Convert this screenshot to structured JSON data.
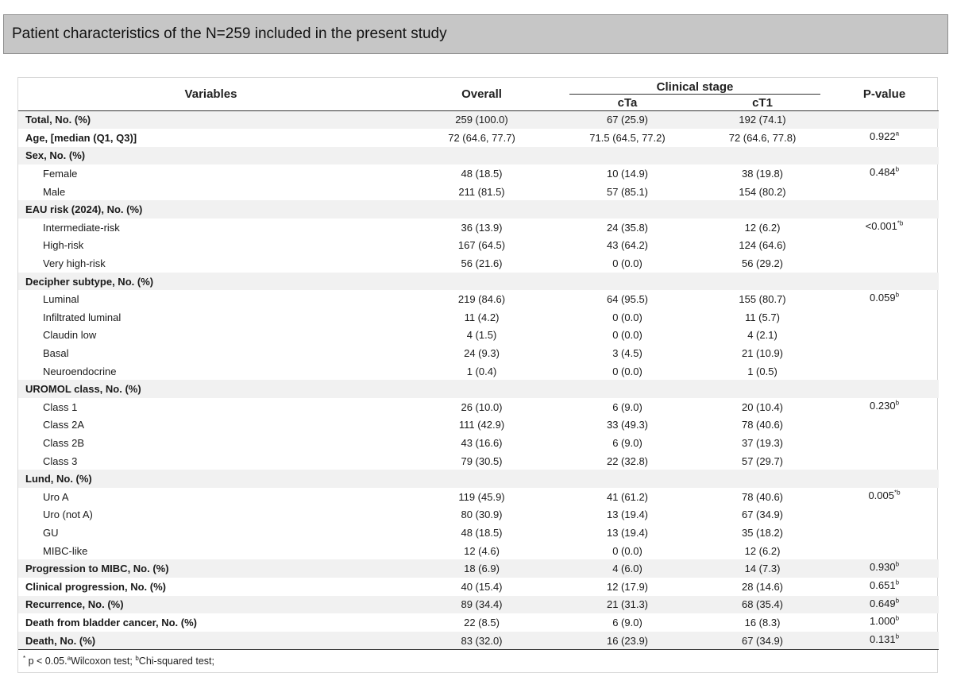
{
  "title": "Patient characteristics of the N=259 included in the present study",
  "headers": {
    "variables": "Variables",
    "overall": "Overall",
    "clinical_stage": "Clinical stage",
    "cta": "cTa",
    "ct1": "cT1",
    "pvalue": "P-value"
  },
  "rows": [
    {
      "label": "Total, No. (%)",
      "group": true,
      "indent": false,
      "overall": "259 (100.0)",
      "cta": "67 (25.9)",
      "ct1": "192 (74.1)",
      "p": "",
      "sup": ""
    },
    {
      "label": "Age,  [median (Q1, Q3)]",
      "group": false,
      "indent": false,
      "bold": true,
      "overall": "72 (64.6, 77.7)",
      "cta": "71.5 (64.5, 77.2)",
      "ct1": "72 (64.6, 77.8)",
      "p": "0.922",
      "sup": "a"
    },
    {
      "label": "Sex, No. (%)",
      "group": true,
      "indent": false,
      "overall": "",
      "cta": "",
      "ct1": "",
      "p": "",
      "sup": ""
    },
    {
      "label": "Female",
      "group": false,
      "indent": true,
      "overall": "48 (18.5)",
      "cta": "10 (14.9)",
      "ct1": "38 (19.8)",
      "p": "0.484",
      "sup": "b"
    },
    {
      "label": "Male",
      "group": false,
      "indent": true,
      "overall": "211 (81.5)",
      "cta": "57 (85.1)",
      "ct1": "154 (80.2)",
      "p": "",
      "sup": ""
    },
    {
      "label": "EAU risk (2024), No. (%)",
      "group": true,
      "indent": false,
      "overall": "",
      "cta": "",
      "ct1": "",
      "p": "",
      "sup": ""
    },
    {
      "label": "Intermediate-risk",
      "group": false,
      "indent": true,
      "overall": "36 (13.9)",
      "cta": "24 (35.8)",
      "ct1": "12 (6.2)",
      "p": "<0.001",
      "sup": "*b"
    },
    {
      "label": "High-risk",
      "group": false,
      "indent": true,
      "overall": "167 (64.5)",
      "cta": "43 (64.2)",
      "ct1": "124 (64.6)",
      "p": "",
      "sup": ""
    },
    {
      "label": "Very high-risk",
      "group": false,
      "indent": true,
      "overall": "56 (21.6)",
      "cta": "0 (0.0)",
      "ct1": "56 (29.2)",
      "p": "",
      "sup": ""
    },
    {
      "label": "Decipher subtype, No. (%)",
      "group": true,
      "indent": false,
      "overall": "",
      "cta": "",
      "ct1": "",
      "p": "",
      "sup": ""
    },
    {
      "label": "Luminal",
      "group": false,
      "indent": true,
      "overall": "219 (84.6)",
      "cta": "64 (95.5)",
      "ct1": "155 (80.7)",
      "p": "0.059",
      "sup": "b"
    },
    {
      "label": "Infiltrated luminal",
      "group": false,
      "indent": true,
      "overall": "11 (4.2)",
      "cta": "0 (0.0)",
      "ct1": "11 (5.7)",
      "p": "",
      "sup": ""
    },
    {
      "label": "Claudin low",
      "group": false,
      "indent": true,
      "overall": "4 (1.5)",
      "cta": "0 (0.0)",
      "ct1": "4 (2.1)",
      "p": "",
      "sup": ""
    },
    {
      "label": "Basal",
      "group": false,
      "indent": true,
      "overall": "24 (9.3)",
      "cta": "3 (4.5)",
      "ct1": "21 (10.9)",
      "p": "",
      "sup": ""
    },
    {
      "label": "Neuroendocrine",
      "group": false,
      "indent": true,
      "overall": "1 (0.4)",
      "cta": "0 (0.0)",
      "ct1": "1 (0.5)",
      "p": "",
      "sup": ""
    },
    {
      "label": "UROMOL class, No. (%)",
      "group": true,
      "indent": false,
      "overall": "",
      "cta": "",
      "ct1": "",
      "p": "",
      "sup": ""
    },
    {
      "label": "Class 1",
      "group": false,
      "indent": true,
      "overall": "26 (10.0)",
      "cta": "6 (9.0)",
      "ct1": "20 (10.4)",
      "p": "0.230",
      "sup": "b"
    },
    {
      "label": "Class 2A",
      "group": false,
      "indent": true,
      "overall": "111 (42.9)",
      "cta": "33 (49.3)",
      "ct1": "78 (40.6)",
      "p": "",
      "sup": ""
    },
    {
      "label": "Class 2B",
      "group": false,
      "indent": true,
      "overall": "43 (16.6)",
      "cta": "6 (9.0)",
      "ct1": "37 (19.3)",
      "p": "",
      "sup": ""
    },
    {
      "label": "Class 3",
      "group": false,
      "indent": true,
      "overall": "79 (30.5)",
      "cta": "22 (32.8)",
      "ct1": "57 (29.7)",
      "p": "",
      "sup": ""
    },
    {
      "label": "Lund, No. (%)",
      "group": true,
      "indent": false,
      "overall": "",
      "cta": "",
      "ct1": "",
      "p": "",
      "sup": ""
    },
    {
      "label": "Uro A",
      "group": false,
      "indent": true,
      "overall": "119 (45.9)",
      "cta": "41 (61.2)",
      "ct1": "78 (40.6)",
      "p": "0.005",
      "sup": "*b"
    },
    {
      "label": "Uro (not A)",
      "group": false,
      "indent": true,
      "overall": "80 (30.9)",
      "cta": "13 (19.4)",
      "ct1": "67 (34.9)",
      "p": "",
      "sup": ""
    },
    {
      "label": "GU",
      "group": false,
      "indent": true,
      "overall": "48 (18.5)",
      "cta": "13 (19.4)",
      "ct1": "35 (18.2)",
      "p": "",
      "sup": ""
    },
    {
      "label": "MIBC-like",
      "group": false,
      "indent": true,
      "overall": "12 (4.6)",
      "cta": "0 (0.0)",
      "ct1": "12 (6.2)",
      "p": "",
      "sup": ""
    },
    {
      "label": "Progression to MIBC, No. (%)",
      "group": true,
      "indent": false,
      "overall": "18 (6.9)",
      "cta": "4 (6.0)",
      "ct1": "14 (7.3)",
      "p": "0.930",
      "sup": "b"
    },
    {
      "label": "Clinical progression, No. (%)",
      "group": false,
      "indent": false,
      "bold": true,
      "overall": "40 (15.4)",
      "cta": "12 (17.9)",
      "ct1": "28 (14.6)",
      "p": "0.651",
      "sup": "b"
    },
    {
      "label": "Recurrence, No. (%)",
      "group": true,
      "indent": false,
      "overall": "89 (34.4)",
      "cta": "21 (31.3)",
      "ct1": "68 (35.4)",
      "p": "0.649",
      "sup": "b"
    },
    {
      "label": "Death from bladder cancer, No. (%)",
      "group": false,
      "indent": false,
      "bold": true,
      "overall": "22 (8.5)",
      "cta": "6 (9.0)",
      "ct1": "16 (8.3)",
      "p": "1.000",
      "sup": "b"
    },
    {
      "label": "Death, No. (%)",
      "group": true,
      "indent": false,
      "overall": "83 (32.0)",
      "cta": "16 (23.9)",
      "ct1": "67 (34.9)",
      "p": "0.131",
      "sup": "b"
    }
  ],
  "footnote": {
    "star": "*",
    "text1": " p < 0.05.",
    "sup_a": "a",
    "text2": "Wilcoxon test; ",
    "sup_b": "b",
    "text3": "Chi-squared test;"
  }
}
